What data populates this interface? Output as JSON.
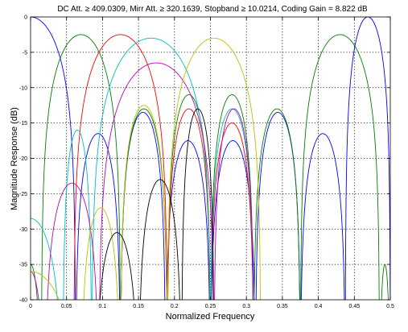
{
  "chart_data": {
    "type": "line",
    "title": "DC Att. ≥ 409.0309, Mirr Att. ≥ 320.1639, Stopband ≥ 10.0214, Coding Gain = 8.822 dB",
    "xlabel": "Normalized Frequency",
    "ylabel": "Magnitude Response (dB)",
    "xlim": [
      0,
      0.5
    ],
    "ylim": [
      -40,
      0
    ],
    "grid": true,
    "xticks": [
      "0",
      "0.05",
      "0.1",
      "0.15",
      "0.2",
      "0.25",
      "0.3",
      "0.35",
      "0.4",
      "0.45",
      "0.5"
    ],
    "yticks": [
      "0",
      "-5",
      "-10",
      "-15",
      "-20",
      "-25",
      "-30",
      "-35",
      "-40"
    ],
    "series": [
      {
        "color": "#0000ff",
        "lobes": [
          [
            0.0,
            0.0,
            0.0625
          ],
          [
            0.0625,
            -16.5,
            0.125
          ],
          [
            0.125,
            -13.5,
            0.1875
          ],
          [
            0.1875,
            -17.5,
            0.25
          ]
        ]
      },
      {
        "color": "#008000",
        "lobes": [
          [
            0.0,
            -35.0,
            0.015
          ],
          [
            0.015,
            -2.5,
            0.125
          ],
          [
            0.125,
            -13.0,
            0.19
          ],
          [
            0.19,
            -11.0,
            0.25
          ]
        ]
      },
      {
        "color": "#ff0000",
        "lobes": [
          [
            0.0,
            -41.0,
            0.06
          ],
          [
            0.06,
            -2.5,
            0.19
          ],
          [
            0.19,
            -13.0,
            0.25
          ],
          [
            0.25,
            -15.0,
            0.31
          ]
        ]
      },
      {
        "color": "#00bfbf",
        "lobes": [
          [
            0.0,
            -28.5,
            0.045
          ],
          [
            0.045,
            -16.0,
            0.085
          ],
          [
            0.085,
            -3.0,
            0.25
          ],
          [
            0.25,
            -13.0,
            0.31
          ]
        ]
      },
      {
        "color": "#bf00bf",
        "lobes": [
          [
            0.0,
            -36.0,
            0.02
          ],
          [
            0.02,
            -23.5,
            0.095
          ],
          [
            0.095,
            -6.5,
            0.255
          ],
          [
            0.255,
            -13.0,
            0.31
          ]
        ]
      },
      {
        "color": "#bfbf00",
        "lobes": [
          [
            0.0,
            -36.0,
            0.07
          ],
          [
            0.07,
            -27.0,
            0.125
          ],
          [
            0.125,
            -12.5,
            0.19
          ],
          [
            0.19,
            -3.0,
            0.32
          ]
        ]
      },
      {
        "color": "#000000",
        "lobes": [
          [
            0.0,
            -41.0,
            0.09
          ],
          [
            0.09,
            -30.5,
            0.15
          ],
          [
            0.15,
            -23.0,
            0.21
          ],
          [
            0.21,
            -13.0,
            0.255
          ]
        ]
      }
    ]
  }
}
